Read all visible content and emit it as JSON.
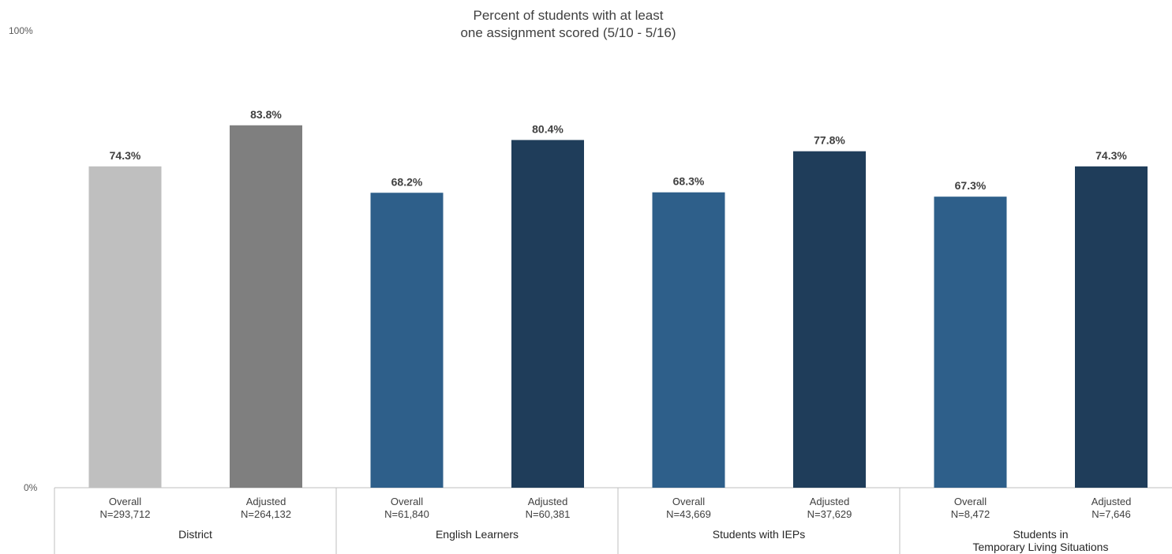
{
  "chart_data": {
    "type": "bar",
    "title": "Percent of students with at least one assignment scored (5/10 - 5/16)",
    "title_lines": [
      "Percent of students with at least",
      "one assignment scored (5/10 - 5/16)"
    ],
    "ylim": [
      0,
      100
    ],
    "y_ticks": [
      "0%",
      "100%"
    ],
    "grid": false,
    "colors": {
      "district_overall": "#bfbfbf",
      "district_adjusted": "#7f7f7f",
      "subgroup_overall": "#2e5f8a",
      "subgroup_adjusted": "#1f3d5a"
    },
    "groups": [
      {
        "name": "District",
        "name_lines": [
          "District"
        ],
        "bars": [
          {
            "label": "Overall",
            "n": "N=293,712",
            "value": 74.3,
            "value_label": "74.3%",
            "color": "#bfbfbf"
          },
          {
            "label": "Adjusted",
            "n": "N=264,132",
            "value": 83.8,
            "value_label": "83.8%",
            "color": "#7f7f7f"
          }
        ]
      },
      {
        "name": "English Learners",
        "name_lines": [
          "English Learners"
        ],
        "bars": [
          {
            "label": "Overall",
            "n": "N=61,840",
            "value": 68.2,
            "value_label": "68.2%",
            "color": "#2e5f8a"
          },
          {
            "label": "Adjusted",
            "n": "N=60,381",
            "value": 80.4,
            "value_label": "80.4%",
            "color": "#1f3d5a"
          }
        ]
      },
      {
        "name": "Students with IEPs",
        "name_lines": [
          "Students with IEPs"
        ],
        "bars": [
          {
            "label": "Overall",
            "n": "N=43,669",
            "value": 68.3,
            "value_label": "68.3%",
            "color": "#2e5f8a"
          },
          {
            "label": "Adjusted",
            "n": "N=37,629",
            "value": 77.8,
            "value_label": "77.8%",
            "color": "#1f3d5a"
          }
        ]
      },
      {
        "name": "Students in Temporary Living Situations",
        "name_lines": [
          "Students in",
          "Temporary Living Situations"
        ],
        "bars": [
          {
            "label": "Overall",
            "n": "N=8,472",
            "value": 67.3,
            "value_label": "67.3%",
            "color": "#2e5f8a"
          },
          {
            "label": "Adjusted",
            "n": "N=7,646",
            "value": 74.3,
            "value_label": "74.3%",
            "color": "#1f3d5a"
          }
        ]
      }
    ]
  }
}
